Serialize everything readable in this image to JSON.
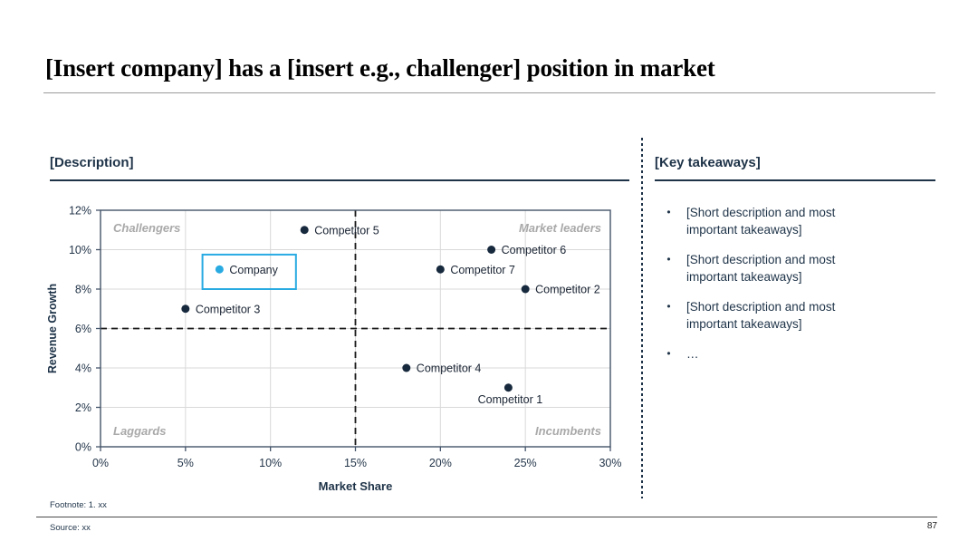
{
  "slide": {
    "title": "[Insert company] has a [insert e.g., challenger] position in market",
    "footnote": "Footnote: 1. xx",
    "source": "Source: xx",
    "page_number": "87"
  },
  "left_panel": {
    "header": "[Description]"
  },
  "right_panel": {
    "header": "[Key takeaways]",
    "bullets": [
      "[Short description and most important takeaways]",
      "[Short description and most important takeaways]",
      "[Short description and most important takeaways]",
      "…"
    ]
  },
  "colors": {
    "accent_blue": "#29ABE2",
    "navy_text": "#1e3348",
    "tick_text": "#24364a",
    "point_label": "#1a2433",
    "dot_navy": "#17293d",
    "quadrant_gray": "#a9a9a9",
    "gridline": "#d9d9d9",
    "axis_border": "#44546A",
    "dashed_line": "#1a1a1a"
  },
  "chart_data": {
    "type": "scatter",
    "title": "",
    "xlabel": "Market Share",
    "ylabel": "Revenue Growth",
    "xlim": [
      0,
      30
    ],
    "ylim": [
      0,
      12
    ],
    "x_ticks": [
      "0%",
      "5%",
      "10%",
      "15%",
      "20%",
      "25%",
      "30%"
    ],
    "y_ticks": [
      "0%",
      "2%",
      "4%",
      "6%",
      "8%",
      "10%",
      "12%"
    ],
    "grid": true,
    "quadrant_divider_x": 15,
    "quadrant_divider_y": 6,
    "quadrant_labels": [
      {
        "label": "Challengers",
        "position": "top-left"
      },
      {
        "label": "Market leaders",
        "position": "top-right"
      },
      {
        "label": "Laggards",
        "position": "bottom-left"
      },
      {
        "label": "Incumbents",
        "position": "bottom-right"
      }
    ],
    "points": [
      {
        "name": "Competitor 5",
        "x": 12,
        "y": 11,
        "label_pos": "right",
        "highlight": false
      },
      {
        "name": "Competitor 6",
        "x": 23,
        "y": 10,
        "label_pos": "right",
        "highlight": false
      },
      {
        "name": "Company",
        "x": 7,
        "y": 9,
        "label_pos": "right",
        "highlight": true,
        "box": {
          "x_min": 6,
          "x_max": 11.5,
          "y_min": 8,
          "y_max": 9.75
        }
      },
      {
        "name": "Competitor 7",
        "x": 20,
        "y": 9,
        "label_pos": "right",
        "highlight": false
      },
      {
        "name": "Competitor 2",
        "x": 25,
        "y": 8,
        "label_pos": "right",
        "highlight": false
      },
      {
        "name": "Competitor 3",
        "x": 5,
        "y": 7,
        "label_pos": "right",
        "highlight": false
      },
      {
        "name": "Competitor 4",
        "x": 18,
        "y": 4,
        "label_pos": "right",
        "highlight": false
      },
      {
        "name": "Competitor 1",
        "x": 24,
        "y": 3,
        "label_pos": "below",
        "highlight": false
      }
    ]
  }
}
